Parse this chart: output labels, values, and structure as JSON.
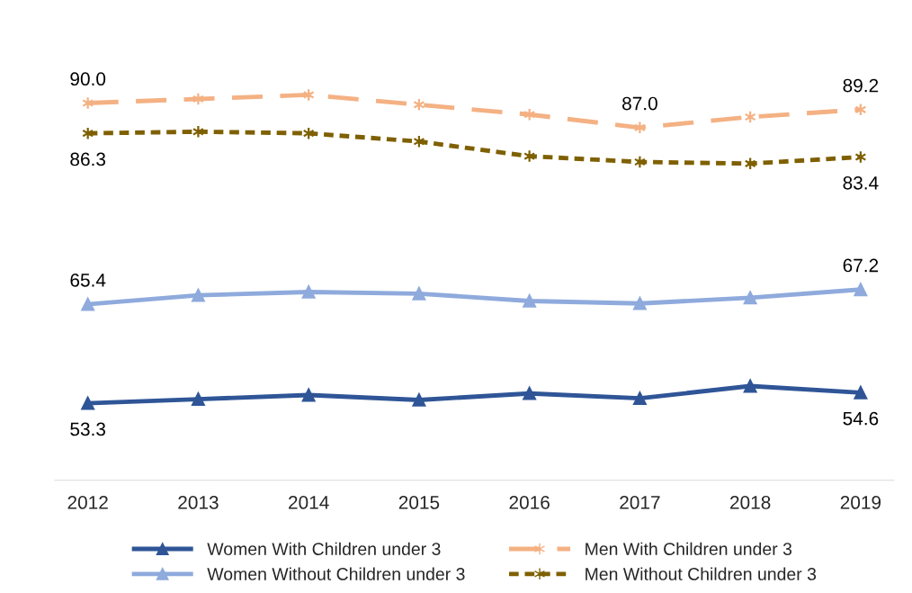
{
  "chart_data": {
    "type": "line",
    "categories": [
      "2012",
      "2013",
      "2014",
      "2015",
      "2016",
      "2017",
      "2018",
      "2019"
    ],
    "tick_labels": "x",
    "grid": false,
    "legend": "bottom",
    "series": [
      {
        "name": "Women With Children under 3",
        "color": "#2f5597",
        "marker": "triangle",
        "line_style": "solid",
        "values": [
          53.3,
          53.8,
          54.3,
          53.7,
          54.5,
          53.9,
          55.4,
          54.6
        ],
        "value_labels": [
          "53.3",
          null,
          null,
          null,
          null,
          null,
          null,
          "54.6"
        ]
      },
      {
        "name": "Women Without Children under 3",
        "color": "#8faadc",
        "marker": "triangle",
        "line_style": "solid",
        "values": [
          65.4,
          66.5,
          66.9,
          66.7,
          65.8,
          65.5,
          66.2,
          67.2
        ],
        "value_labels": [
          "65.4",
          null,
          null,
          null,
          null,
          null,
          null,
          "67.2"
        ]
      },
      {
        "name": "Men With Children under 3",
        "color": "#f4b183",
        "marker": "cross",
        "line_style": "dashed",
        "values": [
          90.0,
          90.5,
          91.0,
          89.8,
          88.6,
          87.0,
          88.3,
          89.2
        ],
        "value_labels": [
          "90.0",
          null,
          null,
          null,
          null,
          "87.0",
          null,
          "89.2"
        ]
      },
      {
        "name": "Men Without Children under 3",
        "color": "#7f6000",
        "marker": "cross",
        "line_style": "dotted",
        "values": [
          86.3,
          86.5,
          86.3,
          85.3,
          83.5,
          82.8,
          82.6,
          83.4
        ],
        "value_labels": [
          "86.3",
          null,
          null,
          null,
          null,
          null,
          null,
          "83.4"
        ]
      }
    ]
  }
}
